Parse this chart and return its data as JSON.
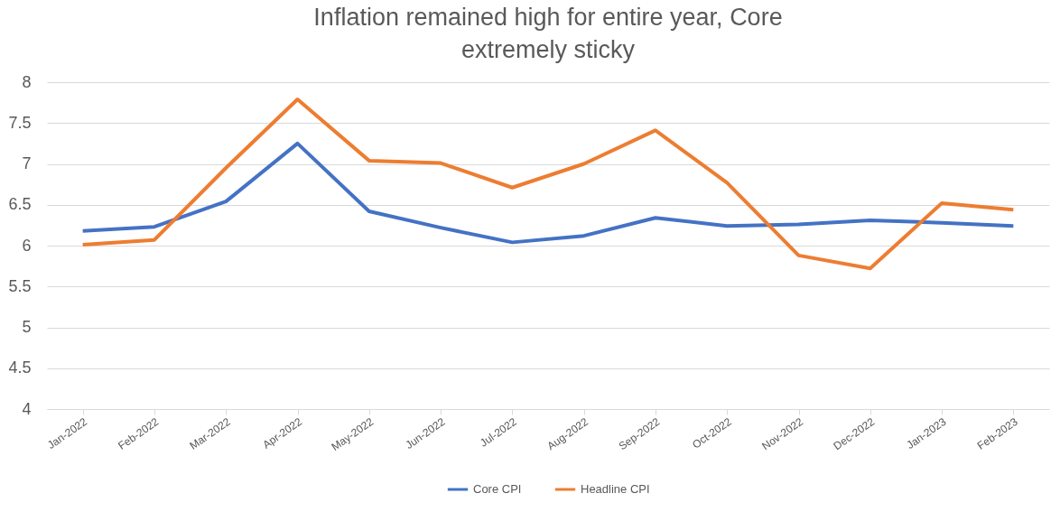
{
  "chart_data": {
    "type": "line",
    "title": "Inflation remained high for entire year, Core extremely sticky",
    "categories": [
      "Jan-2022",
      "Feb-2022",
      "Mar-2022",
      "Apr-2022",
      "May-2022",
      "Jun-2022",
      "Jul-2022",
      "Aug-2022",
      "Sep-2022",
      "Oct-2022",
      "Nov-2022",
      "Dec-2022",
      "Jan-2023",
      "Feb-2023"
    ],
    "series": [
      {
        "name": "Core CPI",
        "color": "#4472c4",
        "values": [
          6.18,
          6.23,
          6.54,
          7.25,
          6.42,
          6.22,
          6.04,
          6.12,
          6.34,
          6.24,
          6.26,
          6.31,
          6.28,
          6.24
        ]
      },
      {
        "name": "Headline CPI",
        "color": "#ed7d31",
        "values": [
          6.01,
          6.07,
          6.95,
          7.79,
          7.04,
          7.01,
          6.71,
          7.0,
          7.41,
          6.77,
          5.88,
          5.72,
          6.52,
          6.44
        ]
      }
    ],
    "ylim": [
      4,
      8
    ],
    "yticks": [
      4,
      4.5,
      5,
      5.5,
      6,
      6.5,
      7,
      7.5,
      8
    ],
    "grid": "y",
    "legend": "bottom",
    "marker": "none",
    "line_style": "solid"
  }
}
